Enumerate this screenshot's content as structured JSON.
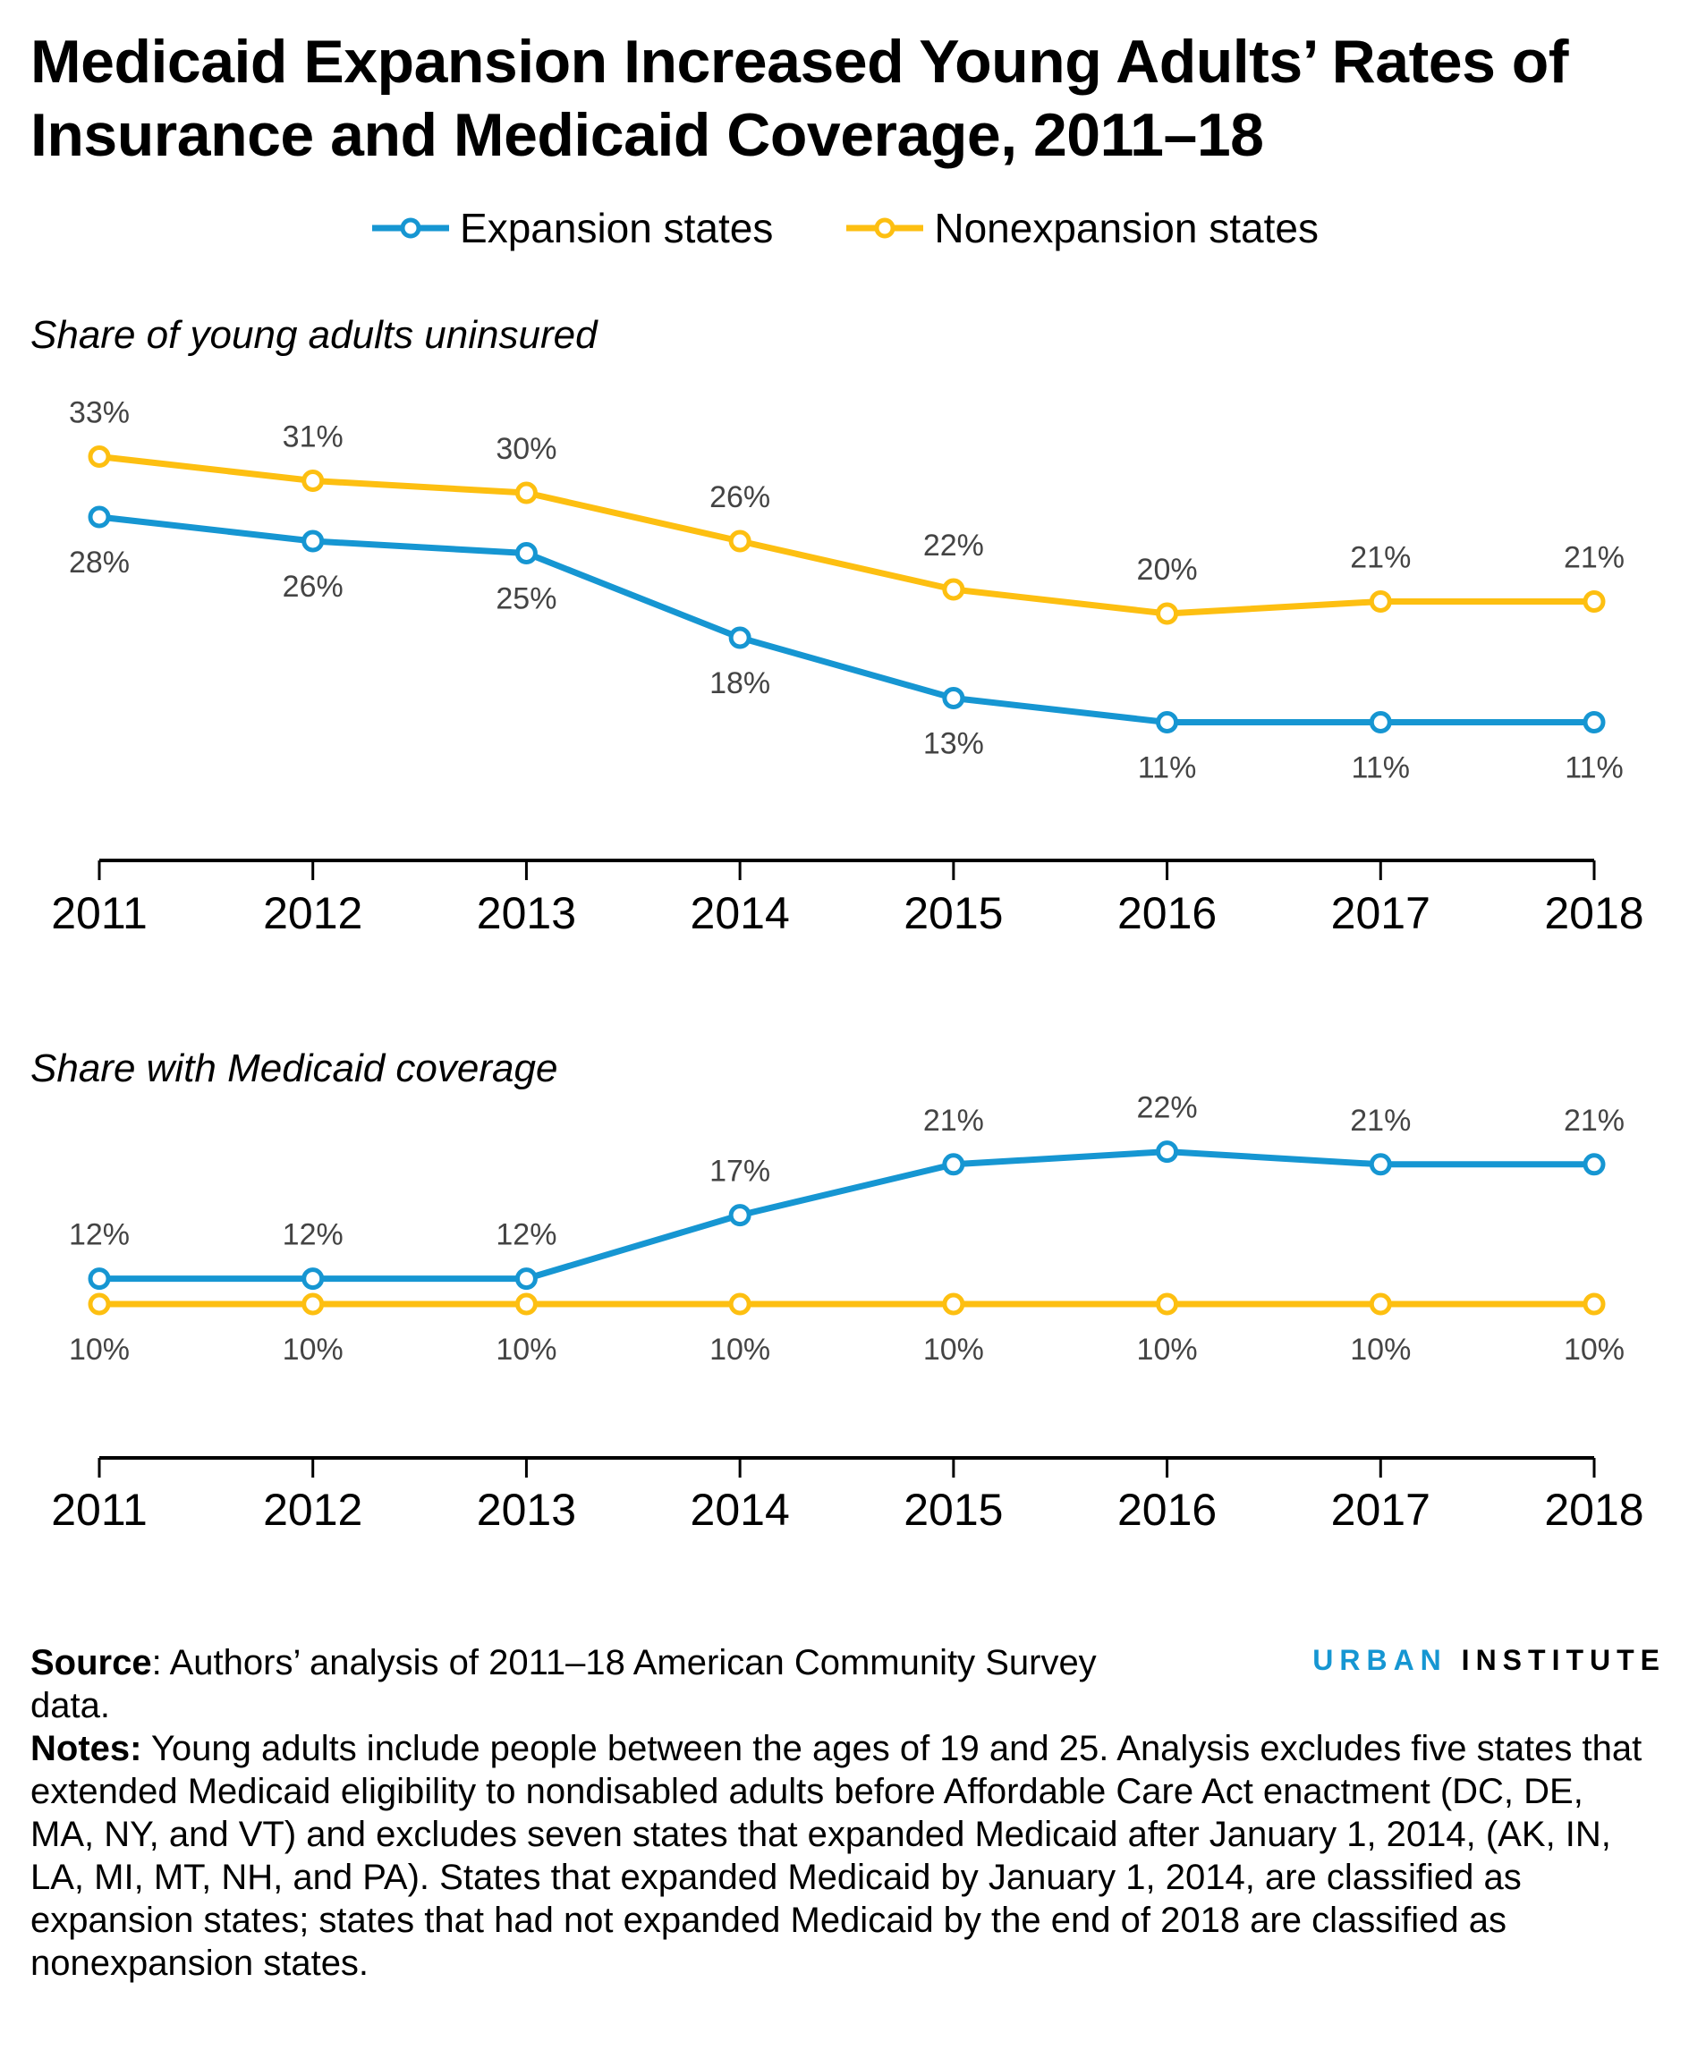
{
  "title": "Medicaid Expansion Increased Young Adults’ Rates of Insurance and Medicaid Coverage, 2011–18",
  "colors": {
    "expansion": "#1696d2",
    "nonexpansion": "#fdbf11"
  },
  "legend": [
    "Expansion states",
    "Nonexpansion states"
  ],
  "chart_data": [
    {
      "type": "line",
      "title": "Share of young adults uninsured",
      "categories": [
        "2011",
        "2012",
        "2013",
        "2014",
        "2015",
        "2016",
        "2017",
        "2018"
      ],
      "series": [
        {
          "name": "Expansion states",
          "values": [
            28,
            26,
            25,
            18,
            13,
            11,
            11,
            11
          ],
          "labels": [
            "28%",
            "26%",
            "25%",
            "18%",
            "13%",
            "11%",
            "11%",
            "11%"
          ]
        },
        {
          "name": "Nonexpansion states",
          "values": [
            33,
            31,
            30,
            26,
            22,
            20,
            21,
            21
          ],
          "labels": [
            "33%",
            "31%",
            "30%",
            "26%",
            "22%",
            "20%",
            "21%",
            "21%"
          ]
        }
      ]
    },
    {
      "type": "line",
      "title": "Share with Medicaid coverage",
      "categories": [
        "2011",
        "2012",
        "2013",
        "2014",
        "2015",
        "2016",
        "2017",
        "2018"
      ],
      "series": [
        {
          "name": "Expansion states",
          "values": [
            12,
            12,
            12,
            17,
            21,
            22,
            21,
            21
          ],
          "labels": [
            "12%",
            "12%",
            "12%",
            "17%",
            "21%",
            "22%",
            "21%",
            "21%"
          ]
        },
        {
          "name": "Nonexpansion states",
          "values": [
            10,
            10,
            10,
            10,
            10,
            10,
            10,
            10
          ],
          "labels": [
            "10%",
            "10%",
            "10%",
            "10%",
            "10%",
            "10%",
            "10%",
            "10%"
          ]
        }
      ]
    }
  ],
  "footer": {
    "source_label": "Source",
    "source_text": ": Authors’ analysis of 2011–18 American Community Survey data.",
    "notes_label": "Notes:",
    "notes_text": " Young adults include people between the ages of 19 and 25. Analysis excludes five states that extended Medicaid eligibility to nondisabled adults before Affordable Care Act enactment (DC, DE, MA, NY, and VT) and excludes seven states that expanded Medicaid after January 1, 2014, (AK, IN, LA, MI, MT, NH, and PA). States that expanded Medicaid by January 1, 2014, are classified as expansion states; states that had not expanded Medicaid by the end of 2018 are classified as nonexpansion states."
  },
  "logo": {
    "part1": "URBAN",
    "part2": "INSTITUTE"
  }
}
